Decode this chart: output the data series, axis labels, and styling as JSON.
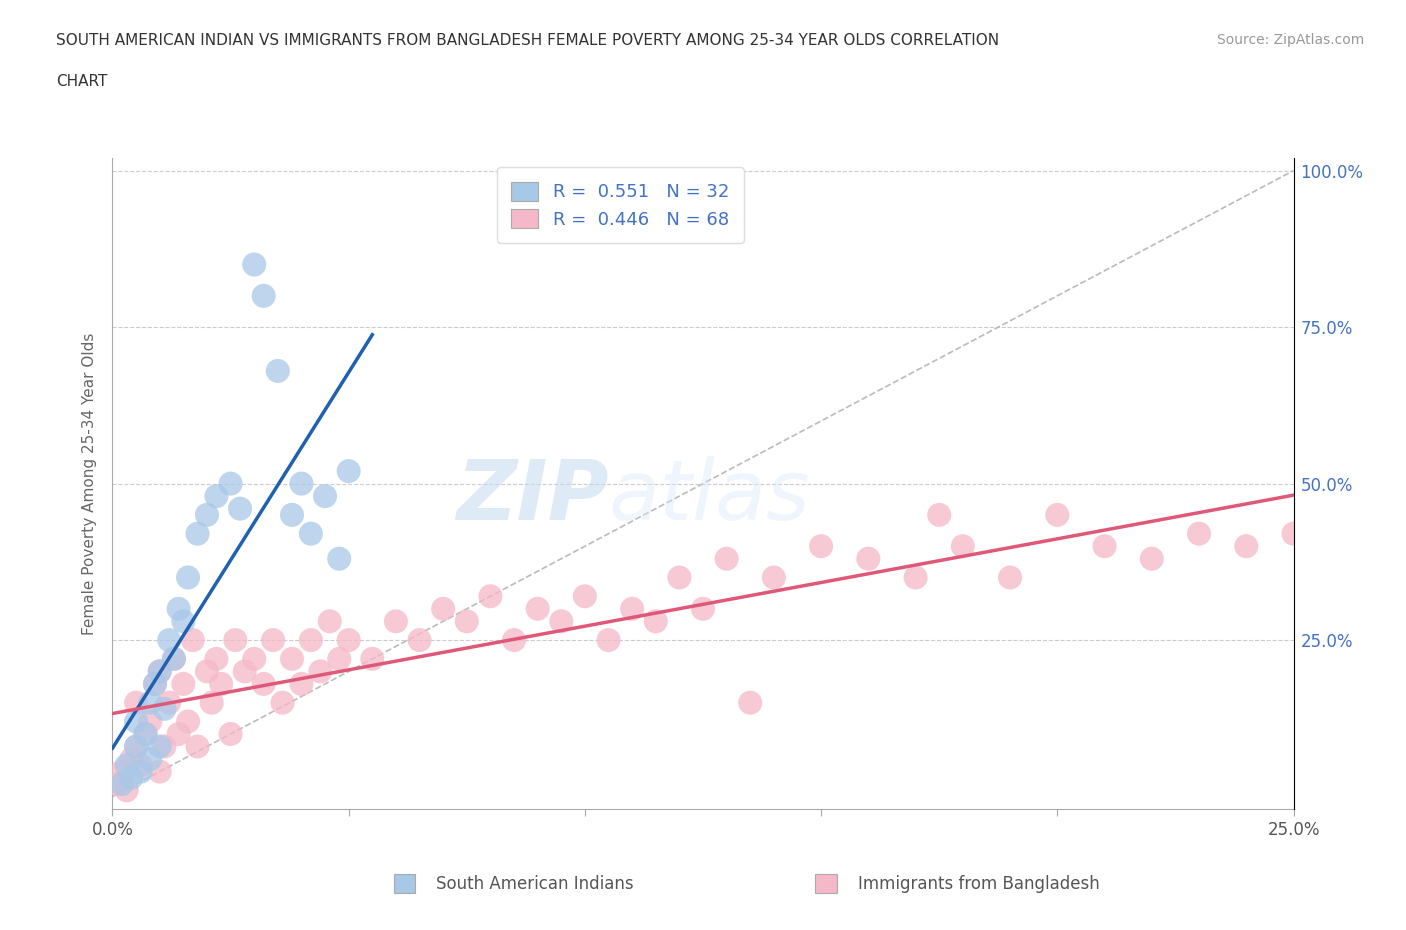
{
  "title_line1": "SOUTH AMERICAN INDIAN VS IMMIGRANTS FROM BANGLADESH FEMALE POVERTY AMONG 25-34 YEAR OLDS CORRELATION",
  "title_line2": "CHART",
  "source_text": "Source: ZipAtlas.com",
  "ylabel": "Female Poverty Among 25-34 Year Olds",
  "xlim": [
    0.0,
    0.25
  ],
  "ylim": [
    -0.02,
    1.02
  ],
  "legend_R1": "0.551",
  "legend_N1": "32",
  "legend_R2": "0.446",
  "legend_N2": "68",
  "legend_label1": "South American Indians",
  "legend_label2": "Immigrants from Bangladesh",
  "blue_color": "#a8c8e8",
  "pink_color": "#f5b8c8",
  "blue_line_color": "#2060b0",
  "pink_line_color": "#e05878",
  "watermark_zip": "ZIP",
  "watermark_atlas": "atlas",
  "blue_scatter_x": [
    0.002,
    0.003,
    0.004,
    0.005,
    0.005,
    0.006,
    0.007,
    0.008,
    0.008,
    0.009,
    0.01,
    0.01,
    0.011,
    0.012,
    0.013,
    0.014,
    0.015,
    0.016,
    0.018,
    0.02,
    0.022,
    0.025,
    0.027,
    0.03,
    0.032,
    0.035,
    0.038,
    0.04,
    0.042,
    0.045,
    0.048,
    0.05
  ],
  "blue_scatter_y": [
    0.02,
    0.05,
    0.03,
    0.08,
    0.12,
    0.04,
    0.1,
    0.06,
    0.15,
    0.18,
    0.08,
    0.2,
    0.14,
    0.25,
    0.22,
    0.3,
    0.28,
    0.35,
    0.42,
    0.45,
    0.48,
    0.5,
    0.46,
    0.85,
    0.8,
    0.68,
    0.45,
    0.5,
    0.42,
    0.48,
    0.38,
    0.52
  ],
  "pink_scatter_x": [
    0.001,
    0.002,
    0.003,
    0.004,
    0.005,
    0.005,
    0.006,
    0.007,
    0.008,
    0.009,
    0.01,
    0.01,
    0.011,
    0.012,
    0.013,
    0.014,
    0.015,
    0.016,
    0.017,
    0.018,
    0.02,
    0.021,
    0.022,
    0.023,
    0.025,
    0.026,
    0.028,
    0.03,
    0.032,
    0.034,
    0.036,
    0.038,
    0.04,
    0.042,
    0.044,
    0.046,
    0.048,
    0.05,
    0.055,
    0.06,
    0.065,
    0.07,
    0.075,
    0.08,
    0.085,
    0.09,
    0.095,
    0.1,
    0.105,
    0.11,
    0.115,
    0.12,
    0.125,
    0.13,
    0.14,
    0.15,
    0.16,
    0.17,
    0.18,
    0.19,
    0.2,
    0.21,
    0.22,
    0.23,
    0.24,
    0.25,
    0.175,
    0.135
  ],
  "pink_scatter_y": [
    0.02,
    0.04,
    0.01,
    0.06,
    0.08,
    0.15,
    0.05,
    0.1,
    0.12,
    0.18,
    0.04,
    0.2,
    0.08,
    0.15,
    0.22,
    0.1,
    0.18,
    0.12,
    0.25,
    0.08,
    0.2,
    0.15,
    0.22,
    0.18,
    0.1,
    0.25,
    0.2,
    0.22,
    0.18,
    0.25,
    0.15,
    0.22,
    0.18,
    0.25,
    0.2,
    0.28,
    0.22,
    0.25,
    0.22,
    0.28,
    0.25,
    0.3,
    0.28,
    0.32,
    0.25,
    0.3,
    0.28,
    0.32,
    0.25,
    0.3,
    0.28,
    0.35,
    0.3,
    0.38,
    0.35,
    0.4,
    0.38,
    0.35,
    0.4,
    0.35,
    0.45,
    0.4,
    0.38,
    0.42,
    0.4,
    0.42,
    0.45,
    0.15
  ]
}
